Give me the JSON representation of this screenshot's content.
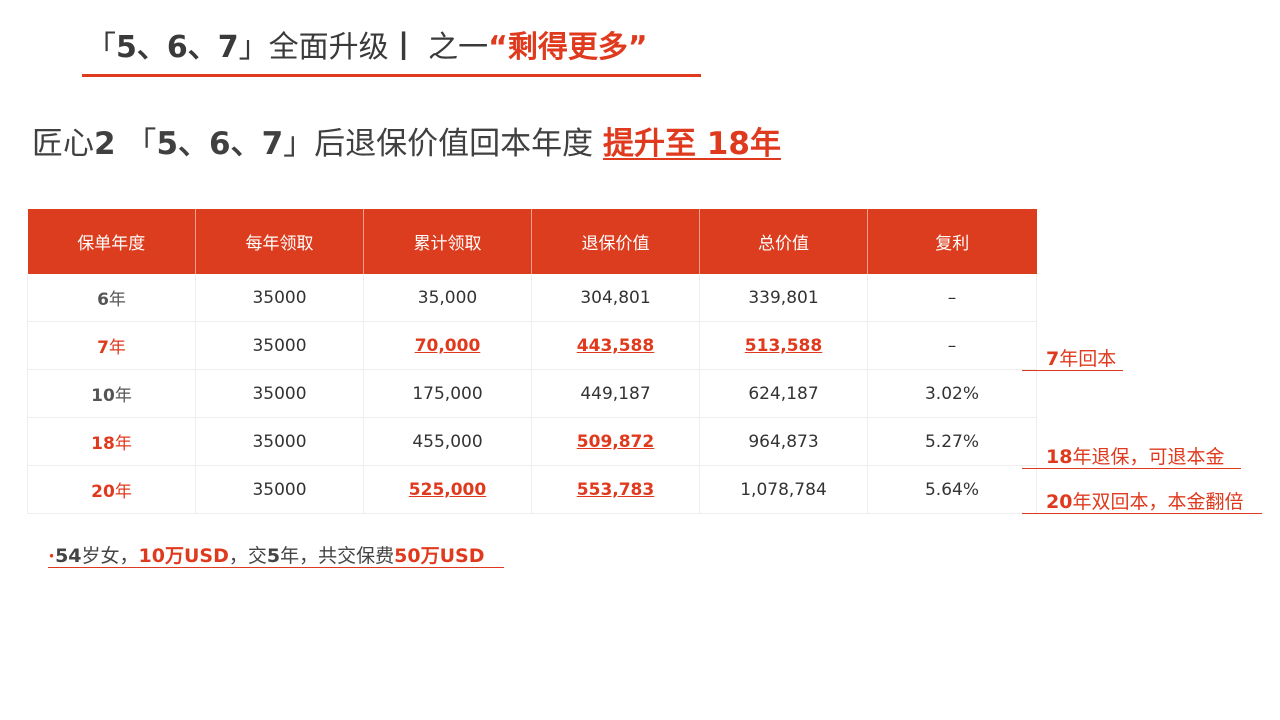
{
  "title": {
    "prefix": "「",
    "nums": "5、6、7",
    "suffix": "」全面升级",
    "separator": "丨",
    "part": " 之一",
    "highlight": "“剩得更多”"
  },
  "subtitle": {
    "lead": "匠心",
    "num": "2",
    "open": " 「",
    "nums": "5、6、7",
    "rest": "」后退保价值回本年度 ",
    "highlight": "提升至 18年"
  },
  "table": {
    "headers": [
      "保单年度",
      "每年领取",
      "累计领取",
      "退保价值",
      "总价值",
      "复利"
    ],
    "rows": [
      {
        "year": "6",
        "unit": "年",
        "annual": "35000",
        "cumulative": "35,000",
        "surrender": "304,801",
        "total": "339,801",
        "rate": "–"
      },
      {
        "year": "7",
        "unit": "年",
        "annual": "35000",
        "cumulative": "70,000",
        "surrender": "443,588",
        "total": "513,588",
        "rate": "–"
      },
      {
        "year": "10",
        "unit": "年",
        "annual": "35000",
        "cumulative": "175,000",
        "surrender": "449,187",
        "total": "624,187",
        "rate": "3.02%"
      },
      {
        "year": "18",
        "unit": "年",
        "annual": "35000",
        "cumulative": "455,000",
        "surrender": "509,872",
        "total": "964,873",
        "rate": "5.27%"
      },
      {
        "year": "20",
        "unit": "年",
        "annual": "35000",
        "cumulative": "525,000",
        "surrender": "553,783",
        "total": "1,078,784",
        "rate": "5.64%"
      }
    ]
  },
  "notes": [
    {
      "num": "7",
      "text": "年回本"
    },
    {
      "num": "18",
      "text": "年退保，可退本金"
    },
    {
      "num": "20",
      "text": "年双回本，本金翻倍"
    }
  ],
  "footnote": {
    "bullet": "•",
    "age": "54",
    "age_text": "岁女，",
    "amount": "10万USD",
    "sep": "，交",
    "years": "5",
    "years_text": "年，共交保费",
    "premium": "50万USD"
  },
  "colors": {
    "accent": "#e03a1e",
    "header_bg": "#dc3d1e",
    "text": "#3c3c3c"
  }
}
